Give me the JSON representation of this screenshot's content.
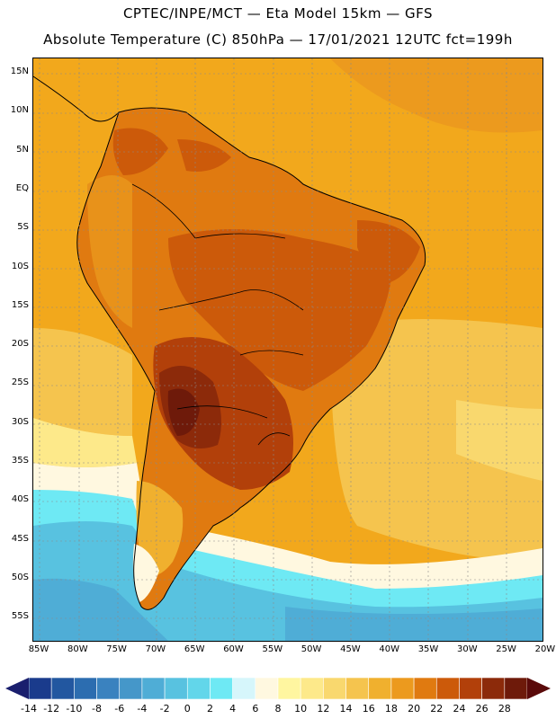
{
  "titles": {
    "line1": "CPTEC/INPE/MCT —  Eta Model 15km — GFS",
    "line2": "Absolute Temperature (C) 850hPa — 17/01/2021 12UTC fct=199h"
  },
  "latitude_labels": [
    "15N",
    "10N",
    "5N",
    "EQ",
    "5S",
    "10S",
    "15S",
    "20S",
    "25S",
    "30S",
    "35S",
    "40S",
    "45S",
    "50S",
    "55S"
  ],
  "longitude_labels": [
    "85W",
    "80W",
    "75W",
    "70W",
    "65W",
    "60W",
    "55W",
    "50W",
    "45W",
    "40W",
    "35W",
    "30W",
    "25W",
    "20W"
  ],
  "colorbar": {
    "labels": [
      "-14",
      "-12",
      "-10",
      "-8",
      "-6",
      "-4",
      "-2",
      "0",
      "2",
      "4",
      "6",
      "8",
      "10",
      "12",
      "14",
      "16",
      "18",
      "20",
      "22",
      "24",
      "26",
      "28"
    ],
    "colors": [
      "#1a3b8c",
      "#2257a0",
      "#2c6db0",
      "#3a82bf",
      "#4597c9",
      "#4fadd6",
      "#58c2e0",
      "#62d6ea",
      "#6ee9f4",
      "#d6f6fb",
      "#fff8e0",
      "#fff6a0",
      "#fde98a",
      "#f9d86e",
      "#f5c44e",
      "#f0b02e",
      "#ec9a1e",
      "#e07a10",
      "#cc5a0a",
      "#b2400a",
      "#8c2a0a",
      "#6e1a0a"
    ],
    "low_arrow_color": "#1a1f6e",
    "high_arrow_color": "#5a0a0a"
  }
}
